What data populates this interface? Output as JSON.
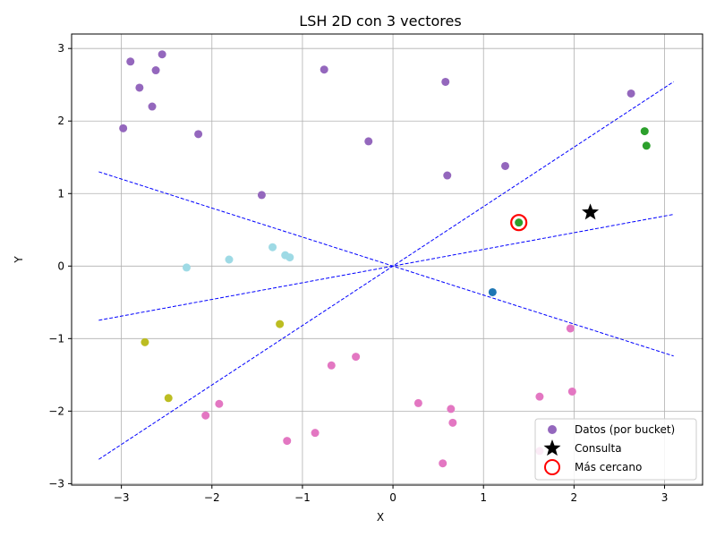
{
  "chart_data": {
    "type": "scatter",
    "title": "LSH 2D con 3 vectores",
    "xlabel": "X",
    "ylabel": "Y",
    "xlim": [
      -3.55,
      3.42
    ],
    "ylim": [
      -3.02,
      3.2
    ],
    "x_ticks": [
      -3,
      -2,
      -1,
      0,
      1,
      2,
      3
    ],
    "y_ticks": [
      -3,
      -2,
      -1,
      0,
      1,
      2,
      3
    ],
    "x_tick_labels": [
      "−3",
      "−2",
      "−1",
      "0",
      "1",
      "2",
      "3"
    ],
    "y_tick_labels": [
      "−3",
      "−2",
      "−1",
      "0",
      "1",
      "2",
      "3"
    ],
    "grid": true,
    "legend_position": "lower-right",
    "legend": [
      {
        "label": "Datos (por bucket)",
        "marker": "circle",
        "color": "#9467bd"
      },
      {
        "label": "Consulta",
        "marker": "star",
        "color": "#000000"
      },
      {
        "label": "Más cercano",
        "marker": "ring",
        "color": "#ff0000"
      }
    ],
    "hyperplanes": {
      "color": "#0000ff",
      "style": "dashed",
      "lines": [
        {
          "slope": -0.4
        },
        {
          "slope": 0.23
        },
        {
          "slope": 0.82
        }
      ],
      "x_range": [
        -3.25,
        3.1
      ]
    },
    "points": [
      {
        "x": -2.9,
        "y": 2.82,
        "color": "#9467bd"
      },
      {
        "x": -2.55,
        "y": 2.92,
        "color": "#9467bd"
      },
      {
        "x": -2.62,
        "y": 2.7,
        "color": "#9467bd"
      },
      {
        "x": -2.8,
        "y": 2.46,
        "color": "#9467bd"
      },
      {
        "x": -2.66,
        "y": 2.2,
        "color": "#9467bd"
      },
      {
        "x": -2.98,
        "y": 1.9,
        "color": "#9467bd"
      },
      {
        "x": -2.15,
        "y": 1.82,
        "color": "#9467bd"
      },
      {
        "x": -0.76,
        "y": 2.71,
        "color": "#9467bd"
      },
      {
        "x": 0.58,
        "y": 2.54,
        "color": "#9467bd"
      },
      {
        "x": -0.27,
        "y": 1.72,
        "color": "#9467bd"
      },
      {
        "x": -1.45,
        "y": 0.98,
        "color": "#9467bd"
      },
      {
        "x": 0.6,
        "y": 1.25,
        "color": "#9467bd"
      },
      {
        "x": 1.24,
        "y": 1.38,
        "color": "#9467bd"
      },
      {
        "x": 2.63,
        "y": 2.38,
        "color": "#9467bd"
      },
      {
        "x": 2.78,
        "y": 1.86,
        "color": "#2ca02c"
      },
      {
        "x": 2.8,
        "y": 1.66,
        "color": "#2ca02c"
      },
      {
        "x": 1.39,
        "y": 0.6,
        "color": "#2ca02c"
      },
      {
        "x": -1.33,
        "y": 0.26,
        "color": "#9edae5"
      },
      {
        "x": -1.19,
        "y": 0.15,
        "color": "#9edae5"
      },
      {
        "x": -1.14,
        "y": 0.12,
        "color": "#9edae5"
      },
      {
        "x": -1.81,
        "y": 0.09,
        "color": "#9edae5"
      },
      {
        "x": -2.28,
        "y": -0.02,
        "color": "#9edae5"
      },
      {
        "x": 1.1,
        "y": -0.36,
        "color": "#1f77b4"
      },
      {
        "x": -1.25,
        "y": -0.8,
        "color": "#bcbd22"
      },
      {
        "x": -2.74,
        "y": -1.05,
        "color": "#bcbd22"
      },
      {
        "x": -2.48,
        "y": -1.82,
        "color": "#bcbd22"
      },
      {
        "x": -0.68,
        "y": -1.37,
        "color": "#e377c2"
      },
      {
        "x": -0.41,
        "y": -1.25,
        "color": "#e377c2"
      },
      {
        "x": -1.92,
        "y": -1.9,
        "color": "#e377c2"
      },
      {
        "x": -2.07,
        "y": -2.06,
        "color": "#e377c2"
      },
      {
        "x": -1.17,
        "y": -2.41,
        "color": "#e377c2"
      },
      {
        "x": -0.86,
        "y": -2.3,
        "color": "#e377c2"
      },
      {
        "x": 0.28,
        "y": -1.89,
        "color": "#e377c2"
      },
      {
        "x": 0.64,
        "y": -1.97,
        "color": "#e377c2"
      },
      {
        "x": 0.66,
        "y": -2.16,
        "color": "#e377c2"
      },
      {
        "x": 0.55,
        "y": -2.72,
        "color": "#e377c2"
      },
      {
        "x": 1.62,
        "y": -1.8,
        "color": "#e377c2"
      },
      {
        "x": 1.98,
        "y": -1.73,
        "color": "#e377c2"
      },
      {
        "x": 1.96,
        "y": -0.86,
        "color": "#e377c2"
      },
      {
        "x": 1.62,
        "y": -2.55,
        "color": "#e377c2"
      }
    ],
    "query": {
      "x": 2.18,
      "y": 0.74,
      "color": "#000000"
    },
    "nearest": {
      "x": 1.39,
      "y": 0.6,
      "color": "#ff0000"
    }
  }
}
